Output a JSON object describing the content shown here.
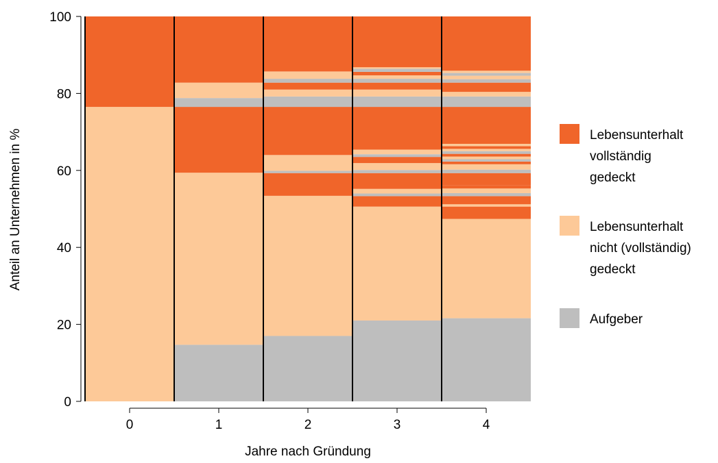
{
  "colors": {
    "covered": "#f0652a",
    "not_covered": "#fdc998",
    "dropout": "#bebebe",
    "divider": "#000000",
    "axis": "#000000"
  },
  "chart_data": {
    "type": "bar",
    "stacked": true,
    "xlabel": "Jahre nach Gründung",
    "ylabel": "Anteil an Unternehmen in %",
    "ylim": [
      0,
      100
    ],
    "yticks": [
      0,
      20,
      40,
      60,
      80,
      100
    ],
    "categories": [
      "0",
      "1",
      "2",
      "3",
      "4"
    ],
    "legend": {
      "placement": "right",
      "entries": [
        {
          "key": "covered",
          "lines": [
            "Lebensunterhalt",
            "vollständig",
            "gedeckt"
          ]
        },
        {
          "key": "not_covered",
          "lines": [
            "Lebensunterhalt",
            "nicht (vollständig)",
            "gedeckt"
          ]
        },
        {
          "key": "dropout",
          "lines": [
            "Aufgeber"
          ]
        }
      ]
    },
    "stacks": [
      {
        "category": "0",
        "segments": [
          {
            "from": 0,
            "to": 76.5,
            "type": "not_covered"
          },
          {
            "from": 76.5,
            "to": 100,
            "type": "covered"
          }
        ]
      },
      {
        "category": "1",
        "segments": [
          {
            "from": 0,
            "to": 14.7,
            "type": "dropout"
          },
          {
            "from": 14.7,
            "to": 59.4,
            "type": "not_covered"
          },
          {
            "from": 59.4,
            "to": 76.5,
            "type": "covered"
          },
          {
            "from": 76.5,
            "to": 78.8,
            "type": "dropout"
          },
          {
            "from": 78.8,
            "to": 82.8,
            "type": "not_covered"
          },
          {
            "from": 82.8,
            "to": 100,
            "type": "covered"
          }
        ]
      },
      {
        "category": "2",
        "segments": [
          {
            "from": 0,
            "to": 17.0,
            "type": "dropout"
          },
          {
            "from": 17.0,
            "to": 53.4,
            "type": "not_covered"
          },
          {
            "from": 53.4,
            "to": 59.3,
            "type": "covered"
          },
          {
            "from": 59.3,
            "to": 59.9,
            "type": "dropout"
          },
          {
            "from": 59.9,
            "to": 64.0,
            "type": "not_covered"
          },
          {
            "from": 64.0,
            "to": 76.5,
            "type": "covered"
          },
          {
            "from": 76.5,
            "to": 79.2,
            "type": "dropout"
          },
          {
            "from": 79.2,
            "to": 81.0,
            "type": "not_covered"
          },
          {
            "from": 81.0,
            "to": 82.8,
            "type": "covered"
          },
          {
            "from": 82.8,
            "to": 83.8,
            "type": "dropout"
          },
          {
            "from": 83.8,
            "to": 85.7,
            "type": "not_covered"
          },
          {
            "from": 85.7,
            "to": 100,
            "type": "covered"
          }
        ]
      },
      {
        "category": "3",
        "segments": [
          {
            "from": 0,
            "to": 21.0,
            "type": "dropout"
          },
          {
            "from": 21.0,
            "to": 50.6,
            "type": "not_covered"
          },
          {
            "from": 50.6,
            "to": 53.3,
            "type": "covered"
          },
          {
            "from": 53.3,
            "to": 54.0,
            "type": "dropout"
          },
          {
            "from": 54.0,
            "to": 55.2,
            "type": "not_covered"
          },
          {
            "from": 55.2,
            "to": 59.3,
            "type": "covered"
          },
          {
            "from": 59.3,
            "to": 60.1,
            "type": "dropout"
          },
          {
            "from": 60.1,
            "to": 61.9,
            "type": "not_covered"
          },
          {
            "from": 61.9,
            "to": 63.5,
            "type": "covered"
          },
          {
            "from": 63.5,
            "to": 64.2,
            "type": "dropout"
          },
          {
            "from": 64.2,
            "to": 65.4,
            "type": "not_covered"
          },
          {
            "from": 65.4,
            "to": 76.5,
            "type": "covered"
          },
          {
            "from": 76.5,
            "to": 79.2,
            "type": "dropout"
          },
          {
            "from": 79.2,
            "to": 81.0,
            "type": "not_covered"
          },
          {
            "from": 81.0,
            "to": 82.8,
            "type": "covered"
          },
          {
            "from": 82.8,
            "to": 83.8,
            "type": "dropout"
          },
          {
            "from": 83.8,
            "to": 84.7,
            "type": "not_covered"
          },
          {
            "from": 84.7,
            "to": 85.6,
            "type": "covered"
          },
          {
            "from": 85.6,
            "to": 86.4,
            "type": "dropout"
          },
          {
            "from": 86.4,
            "to": 86.8,
            "type": "not_covered"
          },
          {
            "from": 86.8,
            "to": 100,
            "type": "covered"
          }
        ]
      },
      {
        "category": "4",
        "segments": [
          {
            "from": 0,
            "to": 21.6,
            "type": "dropout"
          },
          {
            "from": 21.6,
            "to": 47.4,
            "type": "not_covered"
          },
          {
            "from": 47.4,
            "to": 50.6,
            "type": "covered"
          },
          {
            "from": 50.6,
            "to": 51.2,
            "type": "not_covered"
          },
          {
            "from": 51.2,
            "to": 53.3,
            "type": "covered"
          },
          {
            "from": 53.3,
            "to": 54.1,
            "type": "dropout"
          },
          {
            "from": 54.1,
            "to": 55.3,
            "type": "not_covered"
          },
          {
            "from": 55.3,
            "to": 56.2,
            "type": "covered"
          },
          {
            "from": 56.2,
            "to": 59.3,
            "type": "covered"
          },
          {
            "from": 59.3,
            "to": 60.2,
            "type": "dropout"
          },
          {
            "from": 60.2,
            "to": 61.6,
            "type": "not_covered"
          },
          {
            "from": 61.6,
            "to": 62.3,
            "type": "covered"
          },
          {
            "from": 62.3,
            "to": 62.9,
            "type": "dropout"
          },
          {
            "from": 62.9,
            "to": 63.6,
            "type": "not_covered"
          },
          {
            "from": 63.6,
            "to": 64.3,
            "type": "covered"
          },
          {
            "from": 64.3,
            "to": 65.0,
            "type": "dropout"
          },
          {
            "from": 65.0,
            "to": 65.6,
            "type": "not_covered"
          },
          {
            "from": 65.6,
            "to": 66.3,
            "type": "covered"
          },
          {
            "from": 66.3,
            "to": 66.9,
            "type": "not_covered"
          },
          {
            "from": 66.9,
            "to": 76.5,
            "type": "covered"
          },
          {
            "from": 76.5,
            "to": 79.2,
            "type": "dropout"
          },
          {
            "from": 79.2,
            "to": 80.4,
            "type": "not_covered"
          },
          {
            "from": 80.4,
            "to": 82.8,
            "type": "covered"
          },
          {
            "from": 82.8,
            "to": 83.7,
            "type": "dropout"
          },
          {
            "from": 83.7,
            "to": 84.6,
            "type": "not_covered"
          },
          {
            "from": 84.6,
            "to": 85.3,
            "type": "dropout"
          },
          {
            "from": 85.3,
            "to": 85.9,
            "type": "not_covered"
          },
          {
            "from": 85.9,
            "to": 100,
            "type": "covered"
          }
        ]
      }
    ]
  }
}
